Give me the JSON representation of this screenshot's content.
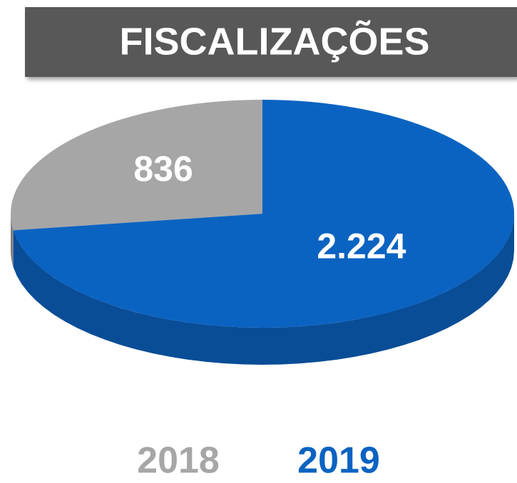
{
  "chart_data": {
    "type": "pie",
    "title": "FISCALIZAÇÕES",
    "categories": [
      "2018",
      "2019"
    ],
    "values": [
      836,
      2224
    ],
    "value_labels": [
      "836",
      "2.224"
    ],
    "colors": [
      "#a6a6a6",
      "#0b63c1"
    ]
  }
}
